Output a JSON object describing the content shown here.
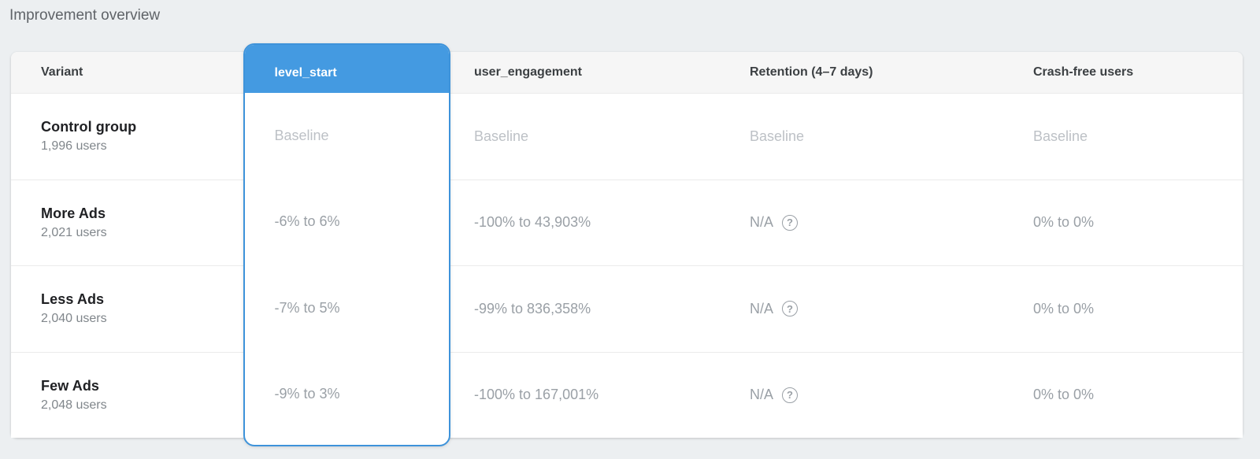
{
  "page": {
    "title": "Improvement overview"
  },
  "colors": {
    "page_background": "#eceff1",
    "accent_blue": "#449ae1",
    "card_border_blue": "#3e93da",
    "header_row_bg": "#f6f6f6",
    "baseline_text": "#bdc1c6",
    "value_text": "#9aa0a6"
  },
  "icons": {
    "help_glyph": "?"
  },
  "table": {
    "columns": [
      {
        "label": "Variant"
      },
      {
        "label": "level_start",
        "highlighted": true
      },
      {
        "label": "user_engagement"
      },
      {
        "label": "Retention (4–7 days)"
      },
      {
        "label": "Crash-free users"
      }
    ],
    "rows": [
      {
        "variant": "Control group",
        "users": "1,996 users",
        "level_start": "Baseline",
        "user_engagement": "Baseline",
        "retention": "Baseline",
        "crash_free": "Baseline"
      },
      {
        "variant": "More Ads",
        "users": "2,021 users",
        "level_start": "-6% to 6%",
        "user_engagement": "-100% to 43,903%",
        "retention": "N/A",
        "crash_free": "0% to 0%"
      },
      {
        "variant": "Less Ads",
        "users": "2,040 users",
        "level_start": "-7% to 5%",
        "user_engagement": "-99% to 836,358%",
        "retention": "N/A",
        "crash_free": "0% to 0%"
      },
      {
        "variant": "Few Ads",
        "users": "2,048 users",
        "level_start": "-9% to 3%",
        "user_engagement": "-100% to 167,001%",
        "retention": "N/A",
        "crash_free": "0% to 0%"
      }
    ]
  }
}
